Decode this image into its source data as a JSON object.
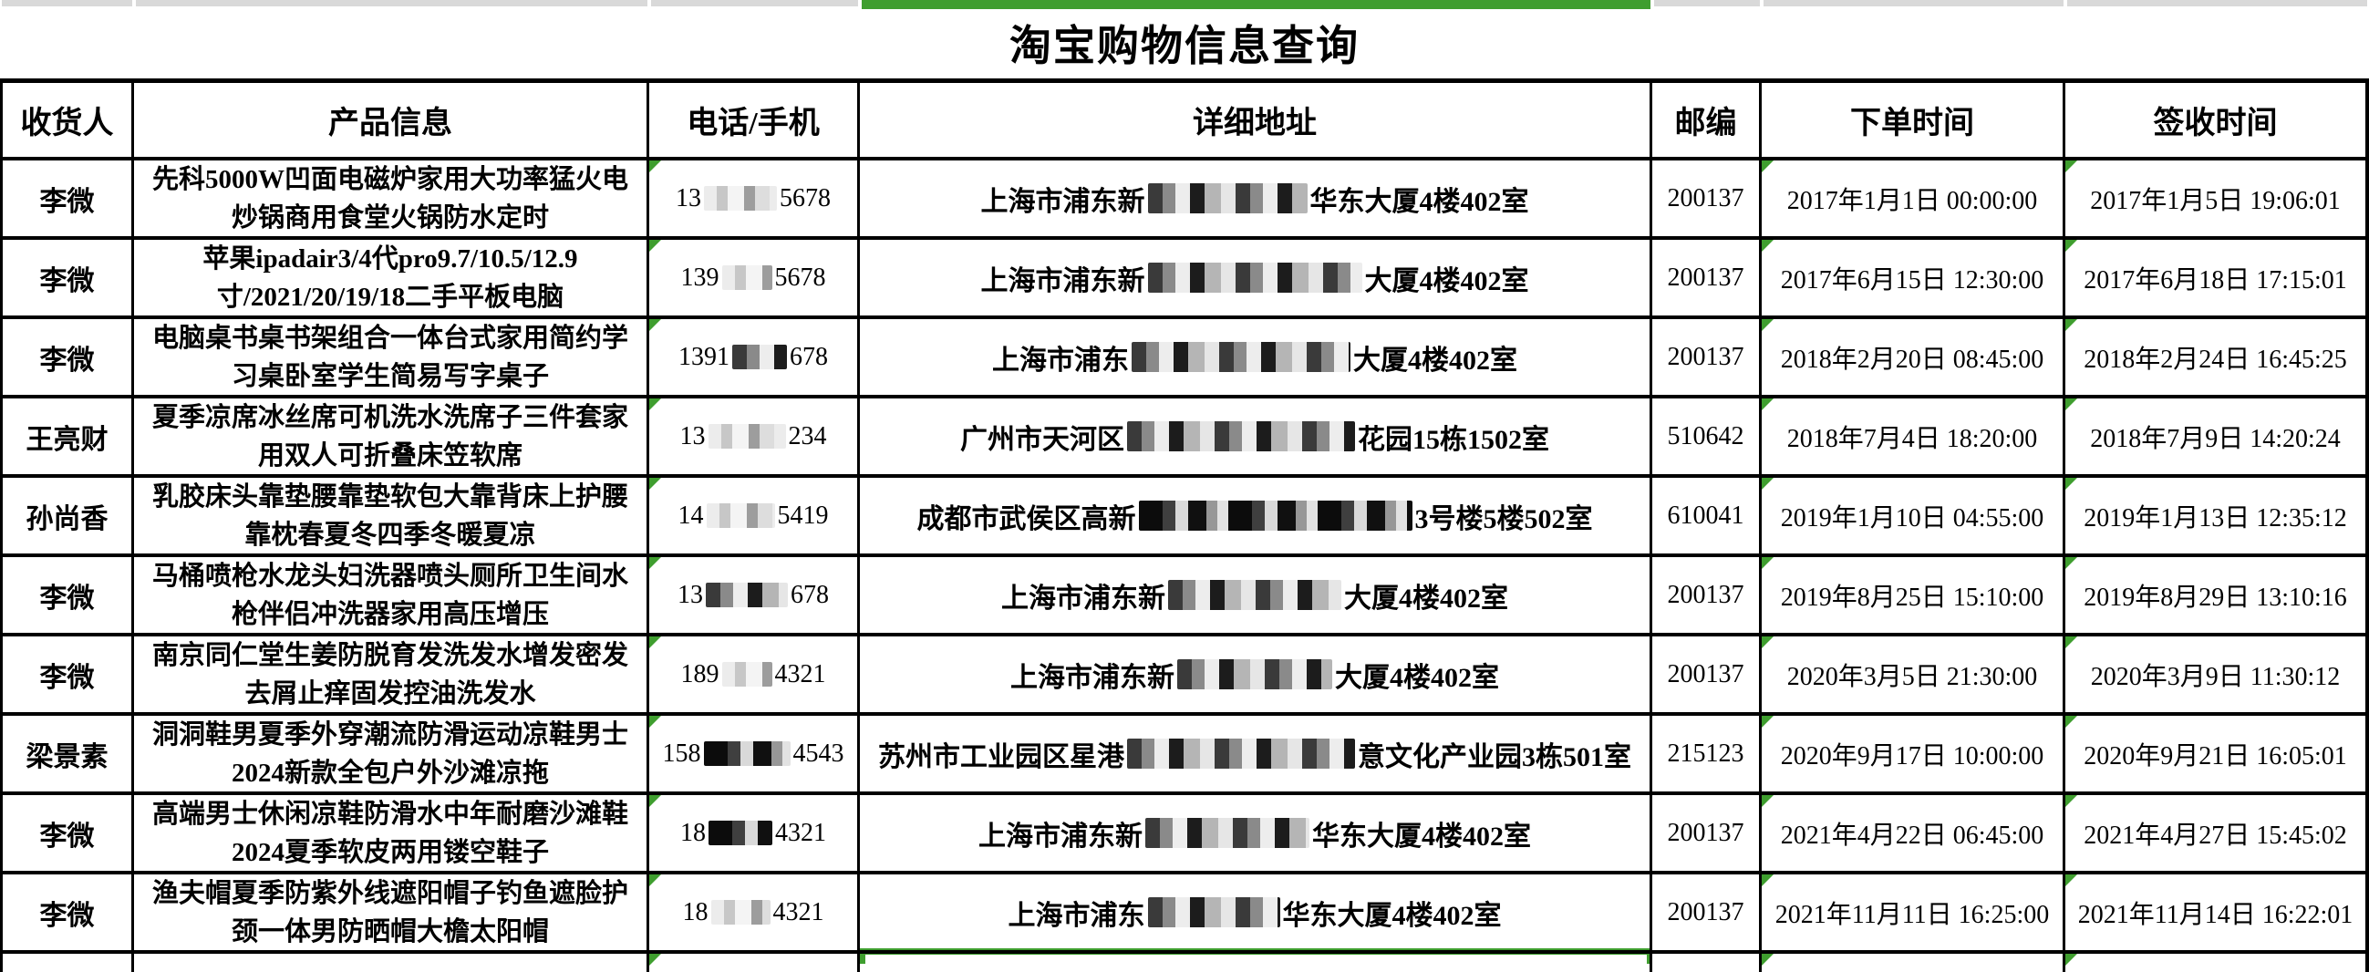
{
  "page": {
    "title": "淘宝购物信息查询"
  },
  "colors": {
    "accent_green": "#3f9e2f",
    "strip_gray": "#d9d9d9",
    "border": "#000000",
    "background": "#ffffff"
  },
  "table": {
    "headers": [
      "收货人",
      "产品信息",
      "电话/手机",
      "详细地址",
      "邮编",
      "下单时间",
      "签收时间"
    ],
    "rows": [
      {
        "recipient": "李微",
        "product": "先科5000W凹面电磁炉家用大功率猛火电炒锅商用食堂火锅防水定时",
        "phone": {
          "prefix": "13",
          "suffix": "5678",
          "blur_w": 80,
          "style": "light"
        },
        "address": {
          "prefix": "上海市浦东新",
          "suffix": "华东大厦4楼402室",
          "blur_w": 175,
          "style": "mixed"
        },
        "zip": "200137",
        "order_time": "2017年1月1日 00:00:00",
        "sign_time": "2017年1月5日 19:06:01"
      },
      {
        "recipient": "李微",
        "product": "苹果ipadair3/4代pro9.7/10.5/12.9寸/2021/20/19/18二手平板电脑",
        "phone": {
          "prefix": "139",
          "suffix": "5678",
          "blur_w": 55,
          "style": "light"
        },
        "address": {
          "prefix": "上海市浦东新",
          "suffix": "大厦4楼402室",
          "blur_w": 235,
          "style": "mixed"
        },
        "zip": "200137",
        "order_time": "2017年6月15日 12:30:00",
        "sign_time": "2017年6月18日 17:15:01"
      },
      {
        "recipient": "李微",
        "product": "电脑桌书桌书架组合一体台式家用简约学习桌卧室学生简易写字桌子",
        "phone": {
          "prefix": "1391",
          "suffix": "678",
          "blur_w": 60,
          "style": "mixed"
        },
        "address": {
          "prefix": "上海市浦东",
          "suffix": "大厦4楼402室",
          "blur_w": 240,
          "style": "mixed"
        },
        "zip": "200137",
        "order_time": "2018年2月20日 08:45:00",
        "sign_time": "2018年2月24日 16:45:25"
      },
      {
        "recipient": "王亮财",
        "product": "夏季凉席冰丝席可机洗水洗席子三件套家用双人可折叠床笠软席",
        "phone": {
          "prefix": "13",
          "suffix": "234",
          "blur_w": 85,
          "style": "light"
        },
        "address": {
          "prefix": "广州市天河区",
          "suffix": "花园15栋1502室",
          "blur_w": 250,
          "style": "mixed"
        },
        "zip": "510642",
        "order_time": "2018年7月4日 18:20:00",
        "sign_time": "2018年7月9日 14:20:24"
      },
      {
        "recipient": "孙尚香",
        "product": "乳胶床头靠垫腰靠垫软包大靠背床上护腰靠枕春夏冬四季冬暖夏凉",
        "phone": {
          "prefix": "14",
          "suffix": "5419",
          "blur_w": 75,
          "style": "light"
        },
        "address": {
          "prefix": "成都市武侯区高新",
          "suffix": "3号楼5楼502室",
          "blur_w": 300,
          "style": "dark"
        },
        "zip": "610041",
        "order_time": "2019年1月10日 04:55:00",
        "sign_time": "2019年1月13日 12:35:12"
      },
      {
        "recipient": "李微",
        "product": "马桶喷枪水龙头妇洗器喷头厕所卫生间水枪伴侣冲洗器家用高压增压",
        "phone": {
          "prefix": "13",
          "suffix": "678",
          "blur_w": 90,
          "style": "mixed"
        },
        "address": {
          "prefix": "上海市浦东新",
          "suffix": "大厦4楼402室",
          "blur_w": 190,
          "style": "mixed"
        },
        "zip": "200137",
        "order_time": "2019年8月25日 15:10:00",
        "sign_time": "2019年8月29日 13:10:16"
      },
      {
        "recipient": "李微",
        "product": "南京同仁堂生姜防脱育发洗发水增发密发去屑止痒固发控油洗发水",
        "phone": {
          "prefix": "189",
          "suffix": "4321",
          "blur_w": 55,
          "style": "light"
        },
        "address": {
          "prefix": "上海市浦东新",
          "suffix": "大厦4楼402室",
          "blur_w": 170,
          "style": "mixed"
        },
        "zip": "200137",
        "order_time": "2020年3月5日 21:30:00",
        "sign_time": "2020年3月9日 11:30:12"
      },
      {
        "recipient": "梁景素",
        "product": "洞洞鞋男夏季外穿潮流防滑运动凉鞋男士2024新款全包户外沙滩凉拖",
        "phone": {
          "prefix": "158",
          "suffix": "4543",
          "blur_w": 95,
          "style": "dark"
        },
        "address": {
          "prefix": "苏州市工业园区星港",
          "suffix": "意文化产业园3栋501室",
          "blur_w": 250,
          "style": "mixed"
        },
        "zip": "215123",
        "order_time": "2020年9月17日 10:00:00",
        "sign_time": "2020年9月21日 16:05:01"
      },
      {
        "recipient": "李微",
        "product": "高端男士休闲凉鞋防滑水中年耐磨沙滩鞋2024夏季软皮两用镂空鞋子",
        "phone": {
          "prefix": "18",
          "suffix": "4321",
          "blur_w": 70,
          "style": "dark"
        },
        "address": {
          "prefix": "上海市浦东新",
          "suffix": "华东大厦4楼402室",
          "blur_w": 180,
          "style": "mixed"
        },
        "zip": "200137",
        "order_time": "2021年4月22日 06:45:00",
        "sign_time": "2021年4月27日 15:45:02"
      },
      {
        "recipient": "李微",
        "product": "渔夫帽夏季防紫外线遮阳帽子钓鱼遮脸护颈一体男防晒帽大檐太阳帽",
        "phone": {
          "prefix": "18",
          "suffix": "4321",
          "blur_w": 65,
          "style": "light"
        },
        "address": {
          "prefix": "上海市浦东",
          "suffix": "华东大厦4楼402室",
          "blur_w": 145,
          "style": "mixed"
        },
        "zip": "200137",
        "order_time": "2021年11月11日 16:25:00",
        "sign_time": "2021年11月14日 16:22:01"
      }
    ]
  },
  "top_strip": {
    "green_column_index": 3,
    "note": "gray partial row above table, address column highlighted green"
  },
  "partial_row": {
    "visible": true
  }
}
